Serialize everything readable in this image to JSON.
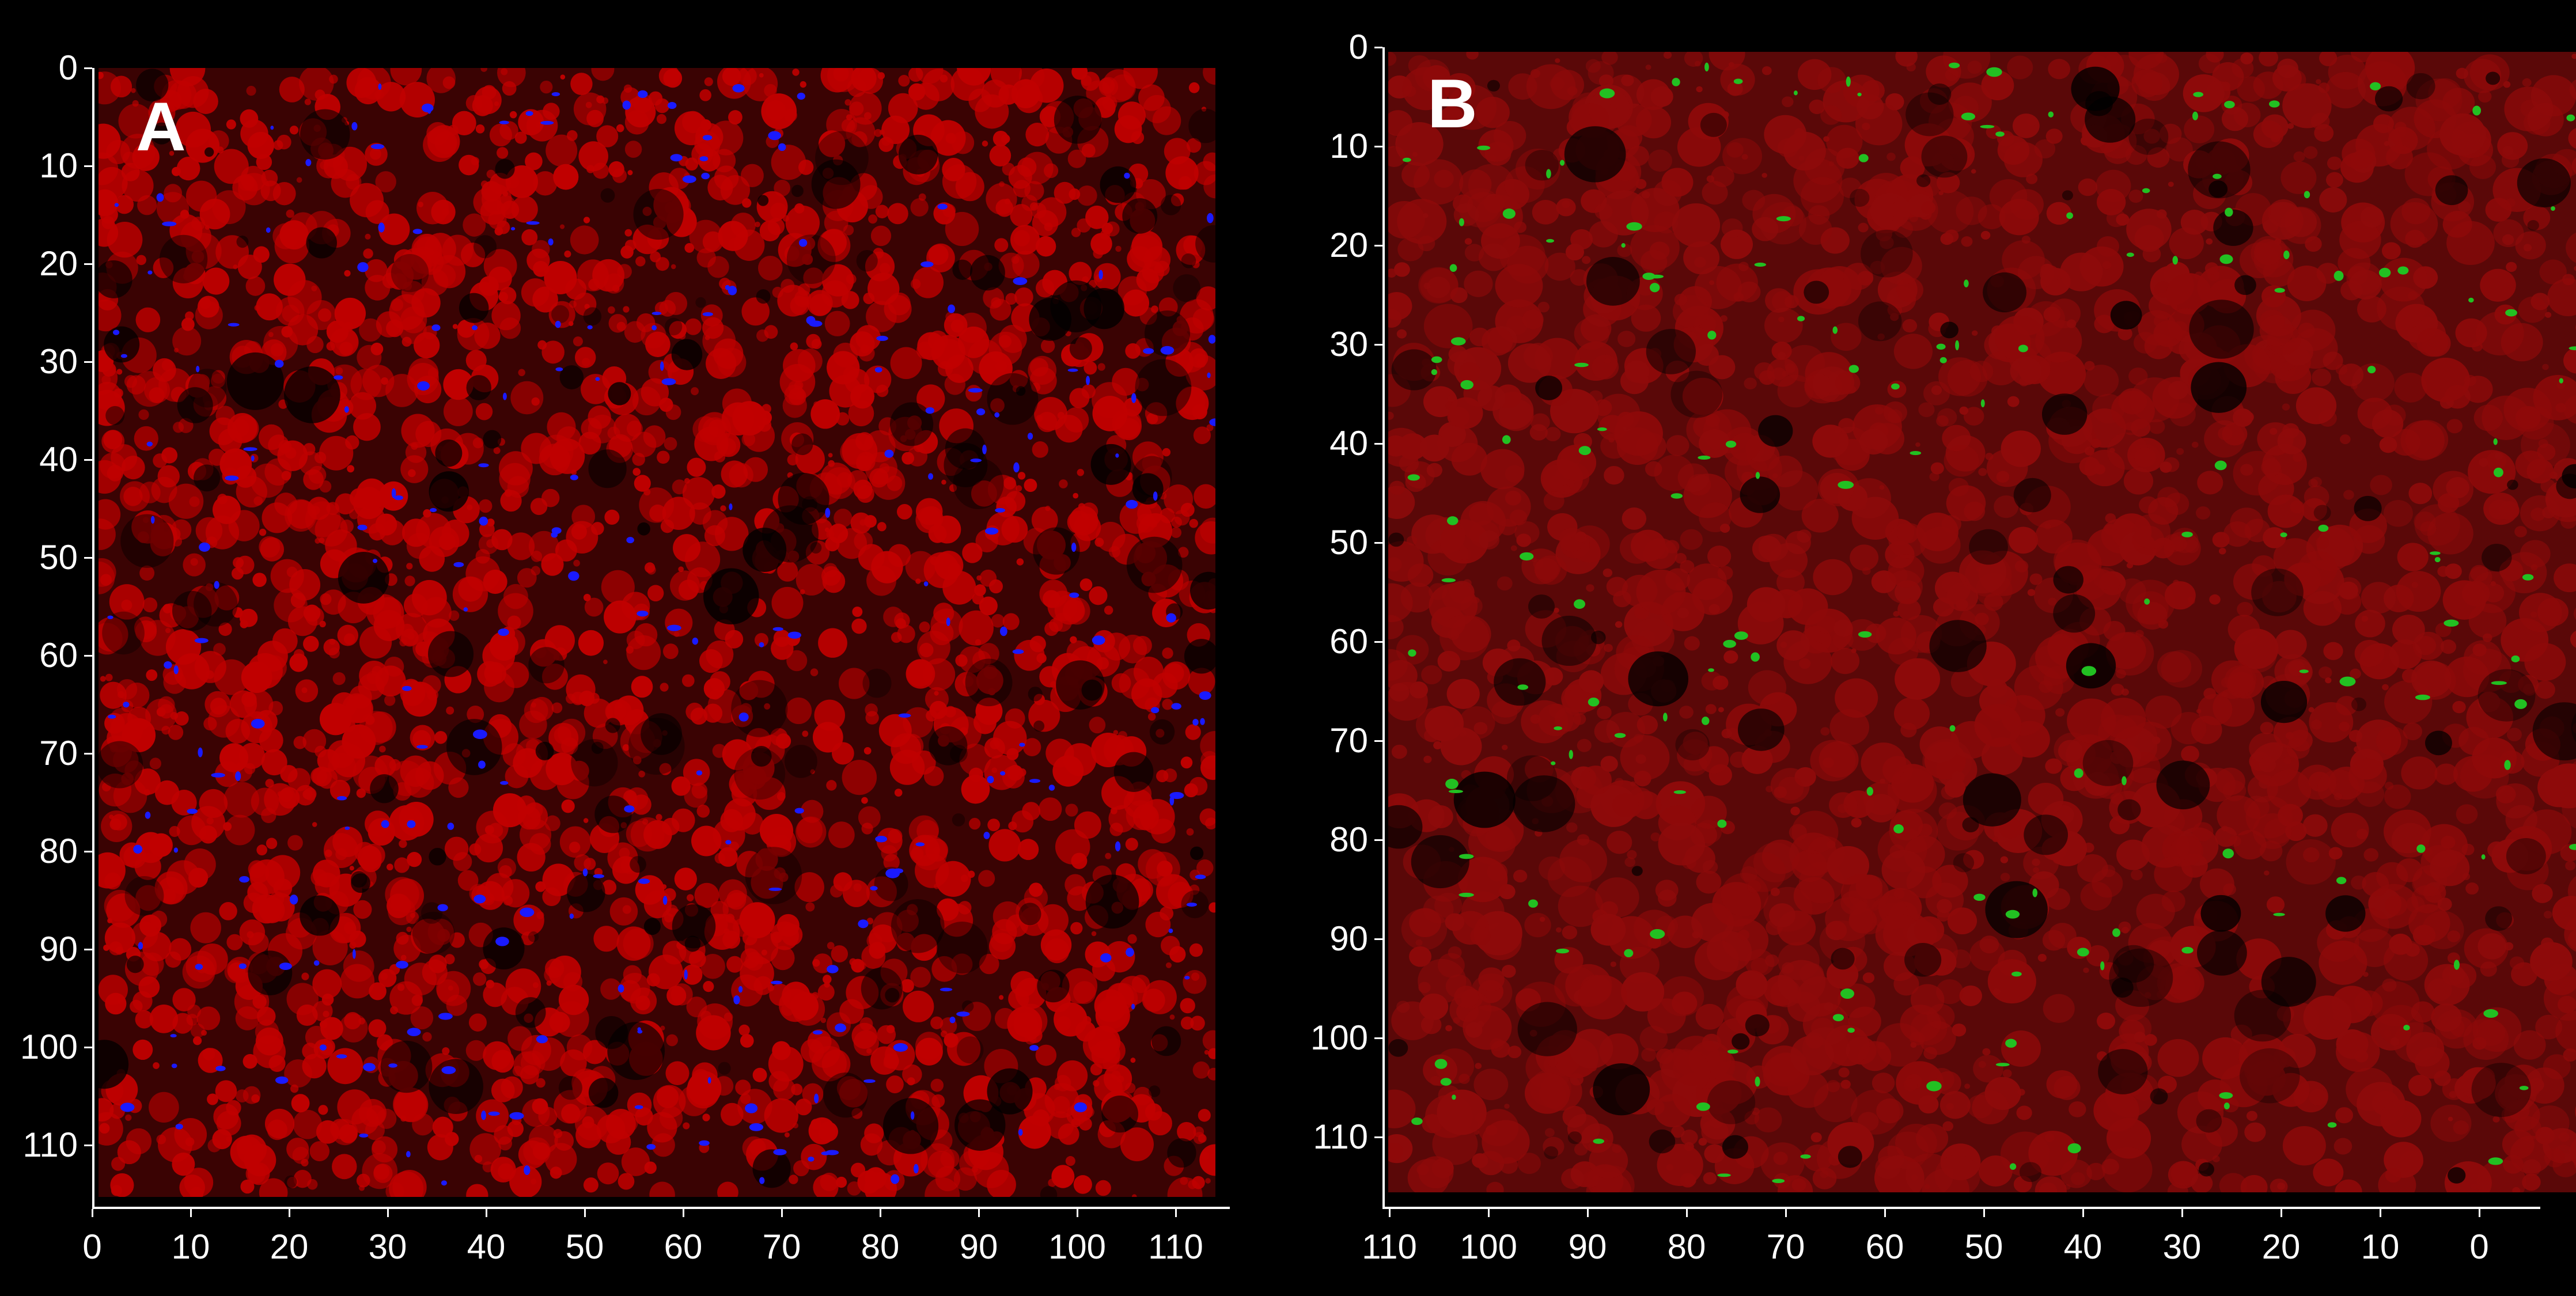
{
  "panels": [
    {
      "id": "A",
      "label": "A",
      "x_ticks": [
        "0",
        "10",
        "20",
        "30",
        "40",
        "50",
        "60",
        "70",
        "80",
        "90",
        "100",
        "110"
      ],
      "y_ticks": [
        "0",
        "10",
        "20",
        "30",
        "40",
        "50",
        "60",
        "70",
        "80",
        "90",
        "100",
        "110"
      ],
      "base_color": "#c00000",
      "accent_color": "#1a1aff"
    },
    {
      "id": "B",
      "label": "B",
      "x_ticks": [
        "110",
        "100",
        "90",
        "80",
        "70",
        "60",
        "50",
        "40",
        "30",
        "20",
        "10",
        "0"
      ],
      "y_ticks": [
        "0",
        "10",
        "20",
        "30",
        "40",
        "50",
        "60",
        "70",
        "80",
        "90",
        "100",
        "110"
      ],
      "base_color": "#8e0a0a",
      "accent_color": "#22c022"
    }
  ]
}
